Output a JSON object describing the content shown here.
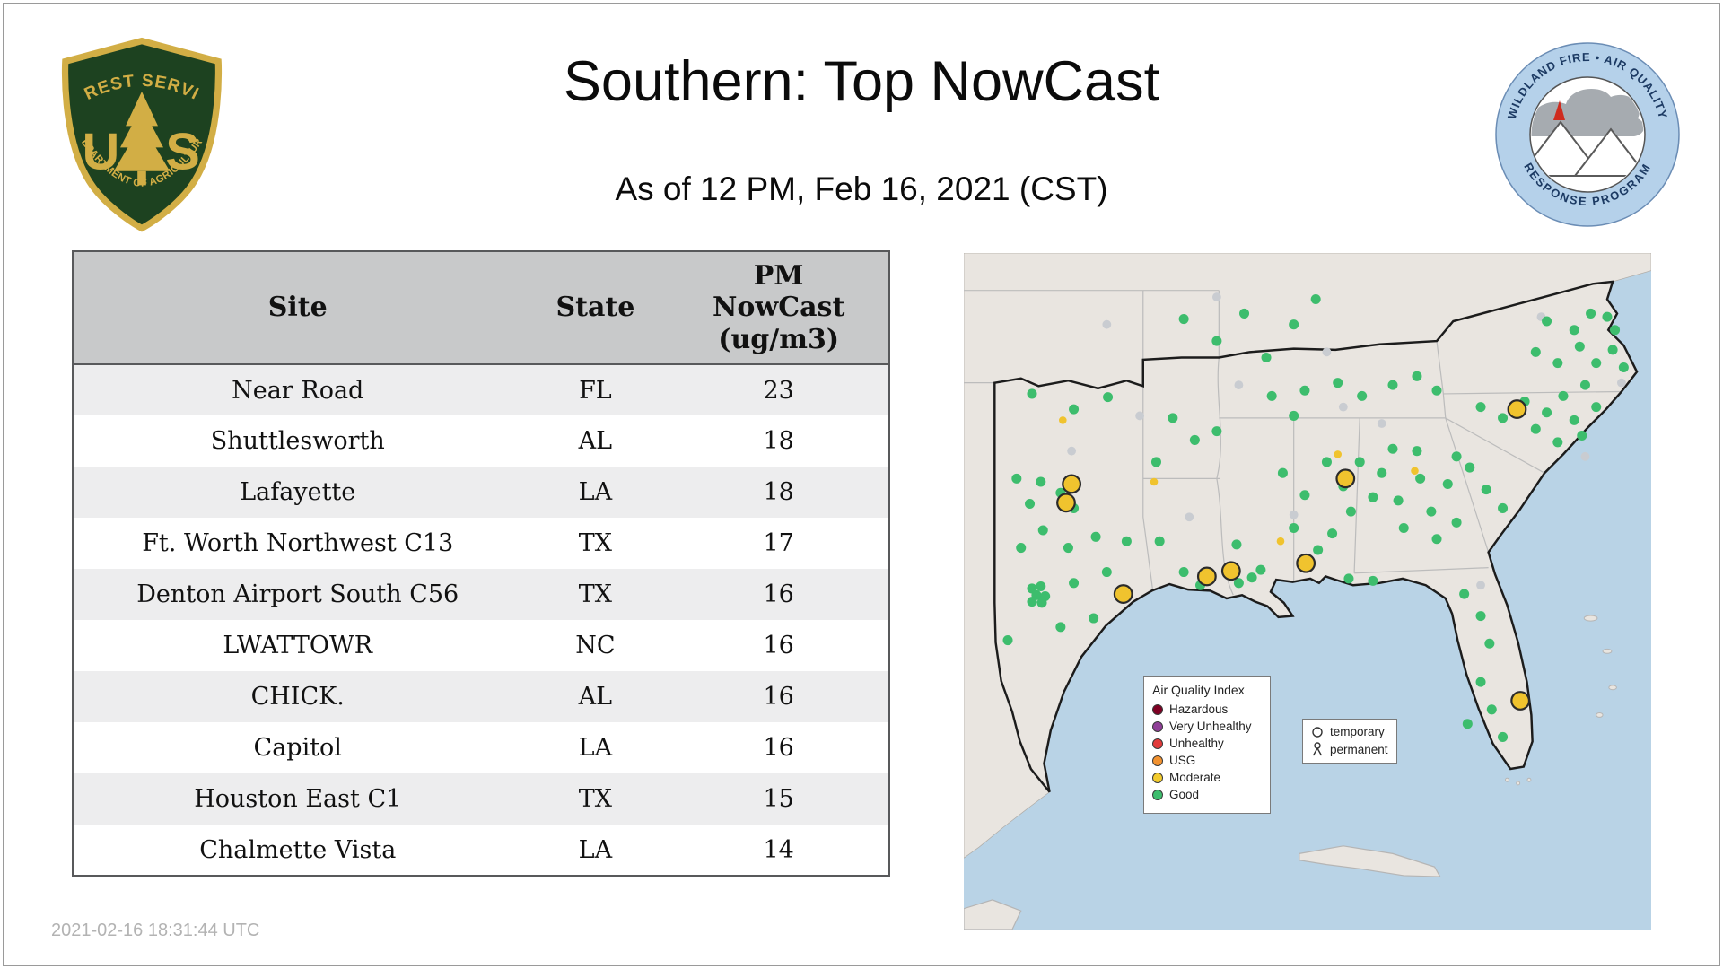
{
  "page": {
    "title": "Southern: Top NowCast",
    "subtitle": "As of 12 PM, Feb 16, 2021 (CST)",
    "timestamp": "2021-02-16 18:31:44 UTC"
  },
  "logos": {
    "usfs": {
      "arc_top": "FOREST SERVICE",
      "letter_u": "U",
      "letter_s": "S",
      "arc_bottom": "DEPARTMENT OF AGRICULTURE"
    },
    "wfaqrp": {
      "arc_top": "WILDLAND FIRE • AIR QUALITY",
      "arc_bottom": "RESPONSE PROGRAM"
    }
  },
  "table": {
    "headers": {
      "site": "Site",
      "state": "State",
      "pm": "PM\nNowCast\n(ug/m3)"
    },
    "rows": [
      {
        "site": "Near Road",
        "state": "FL",
        "pm": 23
      },
      {
        "site": "Shuttlesworth",
        "state": "AL",
        "pm": 18
      },
      {
        "site": "Lafayette",
        "state": "LA",
        "pm": 18
      },
      {
        "site": "Ft. Worth Northwest C13",
        "state": "TX",
        "pm": 17
      },
      {
        "site": "Denton Airport South C56",
        "state": "TX",
        "pm": 16
      },
      {
        "site": "LWATTOWR",
        "state": "NC",
        "pm": 16
      },
      {
        "site": "CHICK.",
        "state": "AL",
        "pm": 16
      },
      {
        "site": "Capitol",
        "state": "LA",
        "pm": 16
      },
      {
        "site": "Houston East C1",
        "state": "TX",
        "pm": 15
      },
      {
        "site": "Chalmette Vista",
        "state": "LA",
        "pm": 14
      }
    ]
  },
  "map": {
    "legend": {
      "title": "Air Quality Index",
      "items": [
        {
          "label": "Hazardous",
          "color": "#7e0023"
        },
        {
          "label": "Very Unhealthy",
          "color": "#8f3f97"
        },
        {
          "label": "Unhealthy",
          "color": "#e23b3b"
        },
        {
          "label": "USG",
          "color": "#f29230"
        },
        {
          "label": "Moderate",
          "color": "#f2cb2e"
        },
        {
          "label": "Good",
          "color": "#3dbd6d"
        }
      ]
    },
    "marker_legend": {
      "temporary": "temporary",
      "permanent": "permanent"
    },
    "colors": {
      "good": "#3dbd6d",
      "moderate": "#f0c32e",
      "inactive": "#c9ccd1",
      "ring": "#2b2b2b"
    },
    "markers": {
      "inactive": [
        [
          160,
          148
        ],
        [
          250,
          120
        ],
        [
          330,
          90
        ],
        [
          525,
          58
        ],
        [
          470,
          302
        ],
        [
          300,
          238
        ],
        [
          230,
          40
        ],
        [
          130,
          65
        ],
        [
          380,
          155
        ],
        [
          565,
          185
        ],
        [
          598,
          118
        ],
        [
          205,
          240
        ],
        [
          345,
          140
        ],
        [
          98,
          180
        ]
      ],
      "good": [
        [
          62,
          128
        ],
        [
          100,
          142
        ],
        [
          131,
          131
        ],
        [
          48,
          205
        ],
        [
          70,
          208
        ],
        [
          88,
          218
        ],
        [
          60,
          228
        ],
        [
          100,
          232
        ],
        [
          72,
          252
        ],
        [
          52,
          268
        ],
        [
          95,
          268
        ],
        [
          120,
          258
        ],
        [
          62,
          305
        ],
        [
          70,
          303
        ],
        [
          66,
          311
        ],
        [
          74,
          312
        ],
        [
          62,
          317
        ],
        [
          71,
          318
        ],
        [
          100,
          300
        ],
        [
          130,
          290
        ],
        [
          148,
          262
        ],
        [
          40,
          352
        ],
        [
          88,
          340
        ],
        [
          118,
          332
        ],
        [
          178,
          262
        ],
        [
          200,
          290
        ],
        [
          215,
          302
        ],
        [
          250,
          300
        ],
        [
          262,
          295
        ],
        [
          248,
          265
        ],
        [
          270,
          288
        ],
        [
          190,
          150
        ],
        [
          210,
          170
        ],
        [
          175,
          190
        ],
        [
          230,
          162
        ],
        [
          200,
          60
        ],
        [
          230,
          80
        ],
        [
          255,
          55
        ],
        [
          300,
          65
        ],
        [
          320,
          42
        ],
        [
          275,
          95
        ],
        [
          280,
          130
        ],
        [
          310,
          125
        ],
        [
          340,
          118
        ],
        [
          362,
          130
        ],
        [
          390,
          120
        ],
        [
          412,
          112
        ],
        [
          430,
          125
        ],
        [
          300,
          148
        ],
        [
          290,
          200
        ],
        [
          310,
          220
        ],
        [
          330,
          190
        ],
        [
          345,
          212
        ],
        [
          352,
          235
        ],
        [
          335,
          255
        ],
        [
          322,
          270
        ],
        [
          300,
          250
        ],
        [
          360,
          190
        ],
        [
          372,
          222
        ],
        [
          380,
          200
        ],
        [
          395,
          225
        ],
        [
          400,
          250
        ],
        [
          415,
          205
        ],
        [
          425,
          235
        ],
        [
          430,
          260
        ],
        [
          440,
          210
        ],
        [
          412,
          180
        ],
        [
          390,
          178
        ],
        [
          448,
          245
        ],
        [
          350,
          296
        ],
        [
          372,
          298
        ],
        [
          455,
          310
        ],
        [
          470,
          330
        ],
        [
          478,
          355
        ],
        [
          470,
          390
        ],
        [
          480,
          415
        ],
        [
          490,
          440
        ],
        [
          458,
          428
        ],
        [
          460,
          195
        ],
        [
          475,
          215
        ],
        [
          490,
          232
        ],
        [
          448,
          185
        ],
        [
          470,
          140
        ],
        [
          490,
          150
        ],
        [
          510,
          135
        ],
        [
          530,
          145
        ],
        [
          545,
          130
        ],
        [
          520,
          160
        ],
        [
          555,
          152
        ],
        [
          562,
          166
        ],
        [
          540,
          172
        ],
        [
          575,
          140
        ],
        [
          565,
          120
        ],
        [
          520,
          90
        ],
        [
          540,
          100
        ],
        [
          560,
          85
        ],
        [
          575,
          100
        ],
        [
          590,
          88
        ],
        [
          555,
          70
        ],
        [
          530,
          62
        ],
        [
          570,
          55
        ],
        [
          592,
          70
        ],
        [
          585,
          58
        ],
        [
          600,
          104
        ]
      ],
      "moderate_small": [
        [
          90,
          152
        ],
        [
          173,
          208
        ],
        [
          288,
          262
        ],
        [
          340,
          183
        ],
        [
          410,
          198
        ]
      ],
      "moderate_large": [
        [
          503,
          142
        ],
        [
          347,
          205
        ],
        [
          98,
          210
        ],
        [
          93,
          227
        ],
        [
          145,
          310
        ],
        [
          221,
          294
        ],
        [
          243,
          289
        ],
        [
          311,
          282
        ],
        [
          506,
          407
        ]
      ]
    }
  }
}
